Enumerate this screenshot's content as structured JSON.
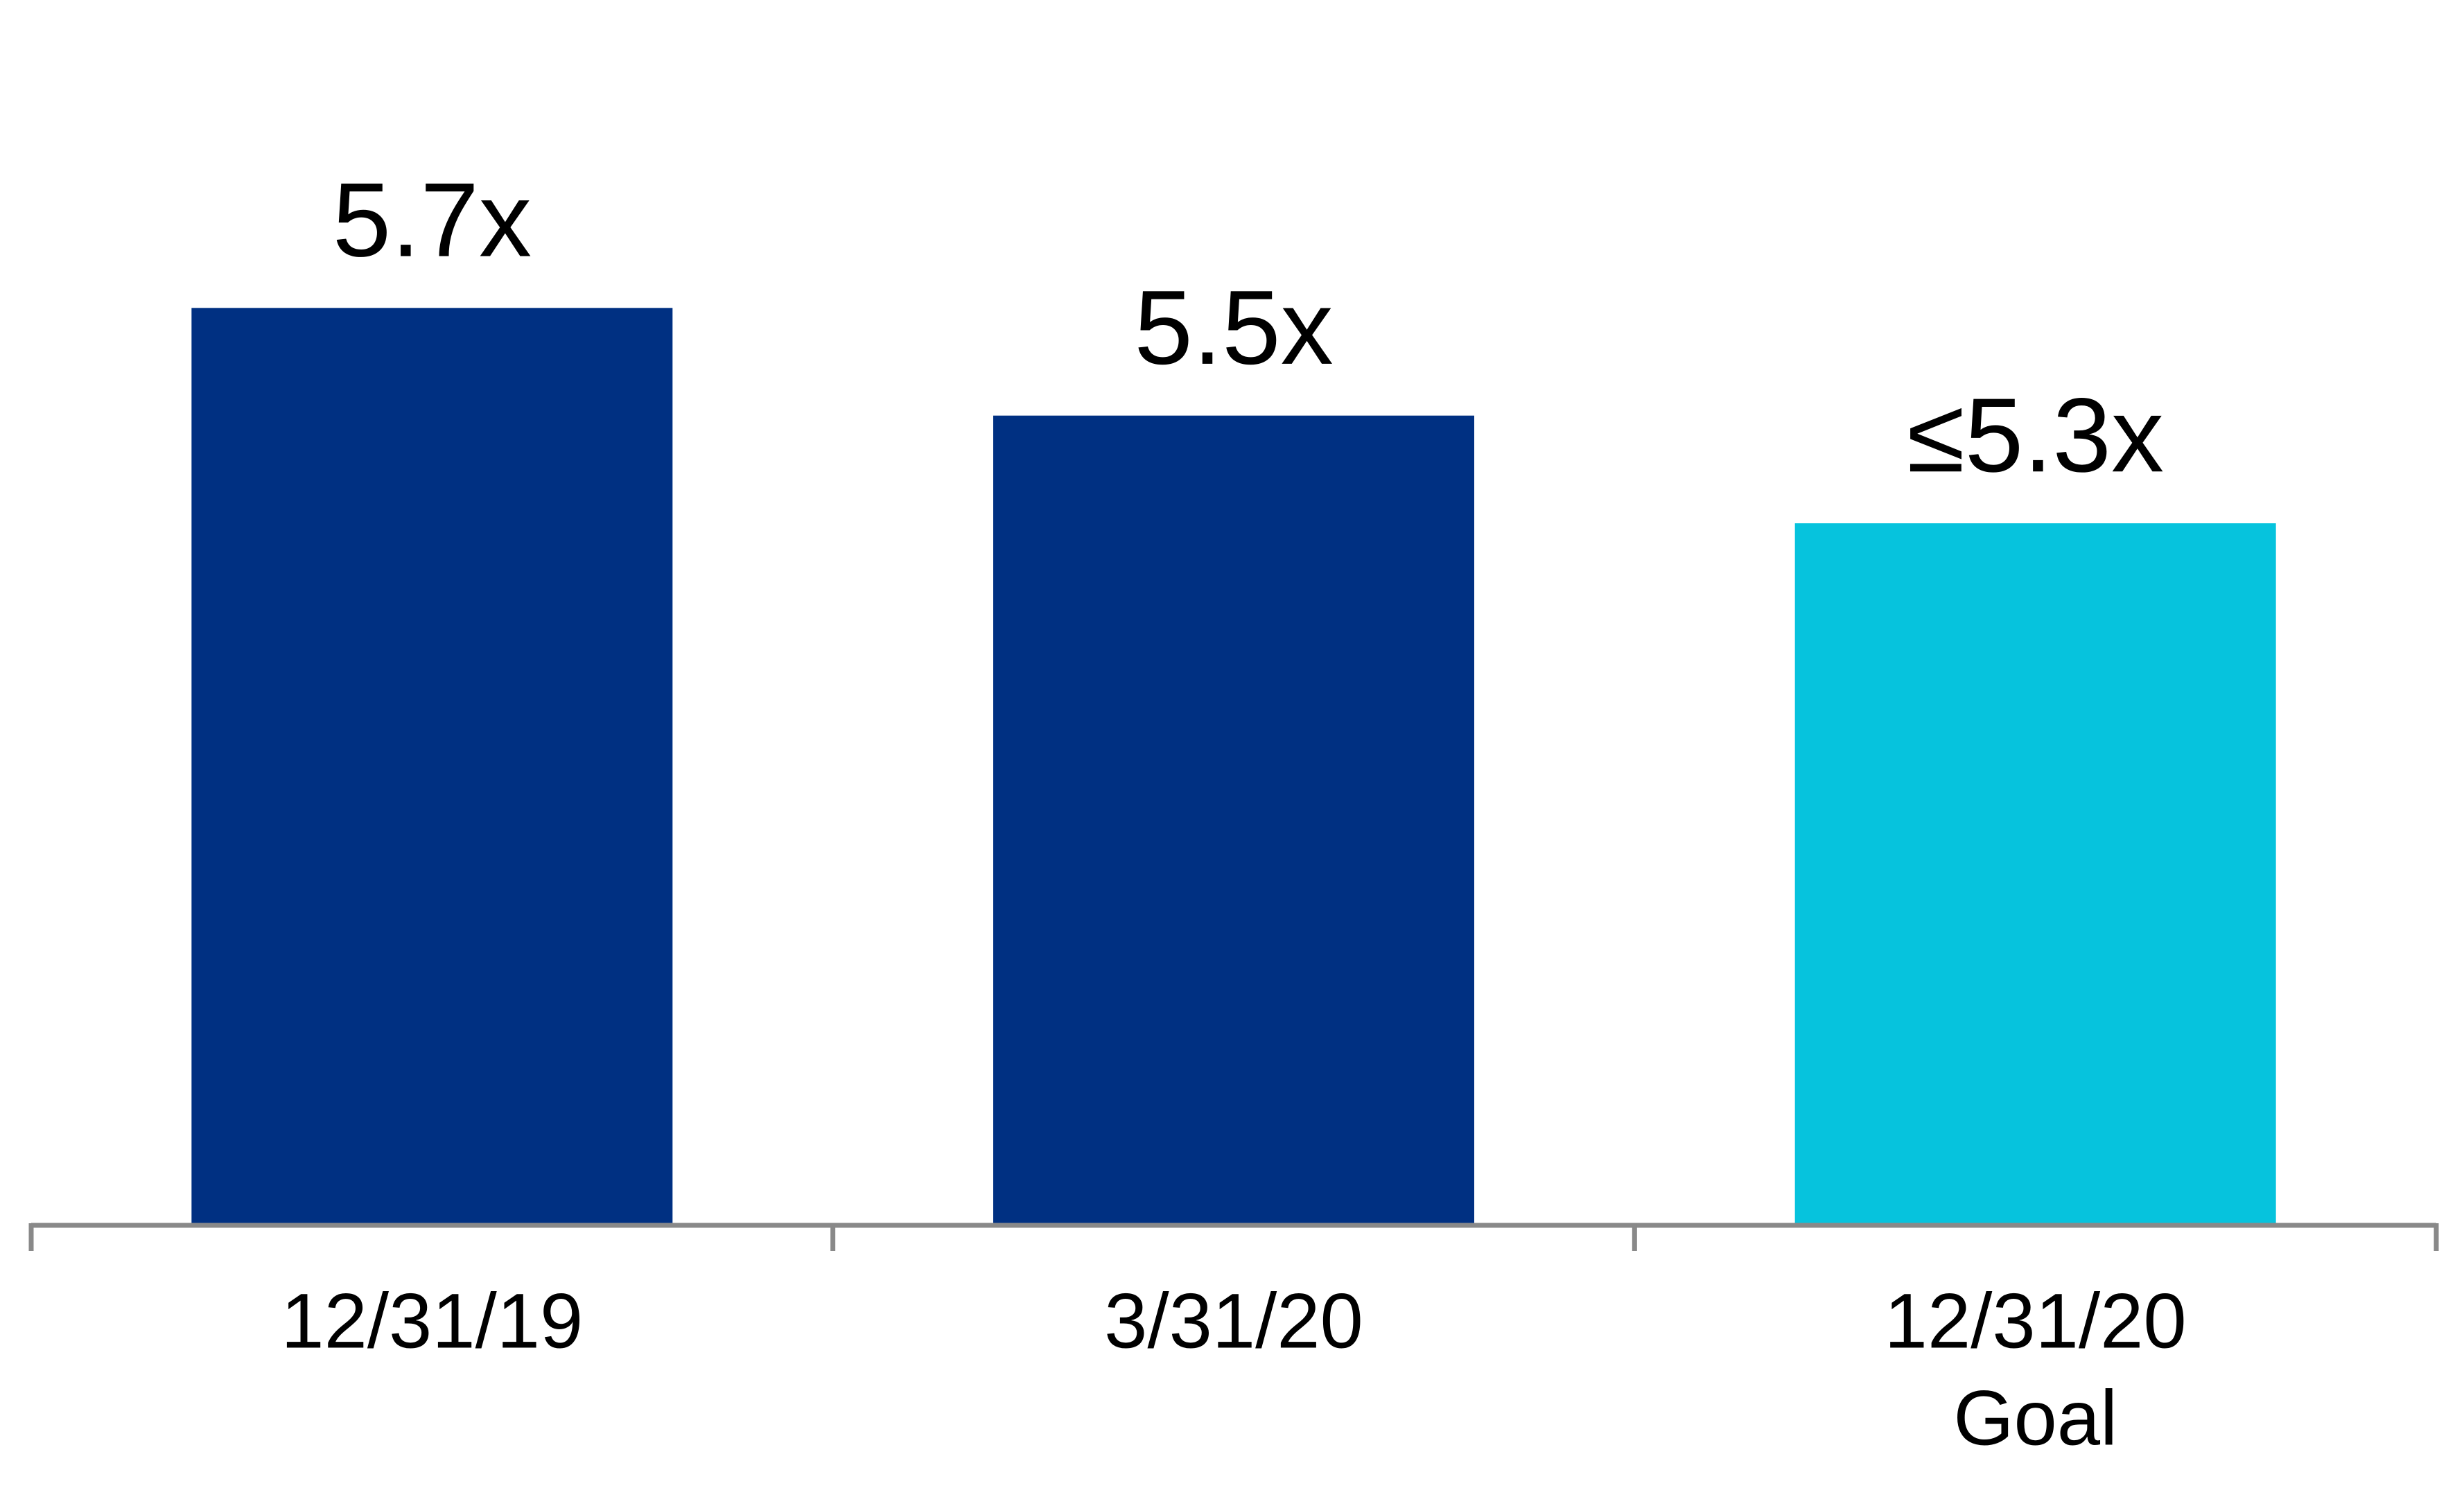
{
  "chart_data": {
    "type": "bar",
    "categories": [
      [
        "12/31/19"
      ],
      [
        "3/31/20"
      ],
      [
        "12/31/20",
        "Goal"
      ]
    ],
    "values": [
      5.7,
      5.5,
      5.3
    ],
    "value_labels": [
      "5.7x",
      "5.5x",
      "≤5.3x"
    ],
    "colors": [
      "#003082",
      "#003082",
      "#06c3dd"
    ],
    "ylim": [
      4,
      6.25
    ]
  }
}
